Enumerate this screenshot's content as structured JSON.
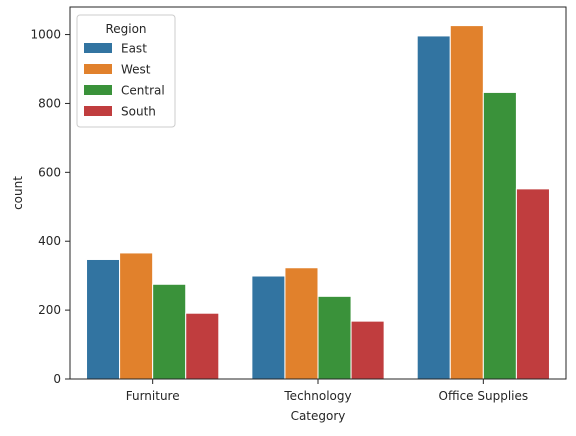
{
  "chart_data": {
    "type": "bar",
    "title": "",
    "xlabel": "Category",
    "ylabel": "count",
    "categories": [
      "Furniture",
      "Technology",
      "Office Supplies"
    ],
    "series": [
      {
        "name": "East",
        "color": "#3274a1",
        "values": [
          347,
          299,
          996
        ]
      },
      {
        "name": "West",
        "color": "#e1812c",
        "values": [
          366,
          323,
          1026
        ]
      },
      {
        "name": "Central",
        "color": "#3a923a",
        "values": [
          275,
          240,
          832
        ]
      },
      {
        "name": "South",
        "color": "#c03d3e",
        "values": [
          191,
          168,
          552
        ]
      }
    ],
    "ylim": [
      0,
      1080
    ],
    "yticks": [
      0,
      200,
      400,
      600,
      800,
      1000
    ],
    "grid": false,
    "legend": {
      "title": "Region",
      "placement": "top-left"
    }
  }
}
